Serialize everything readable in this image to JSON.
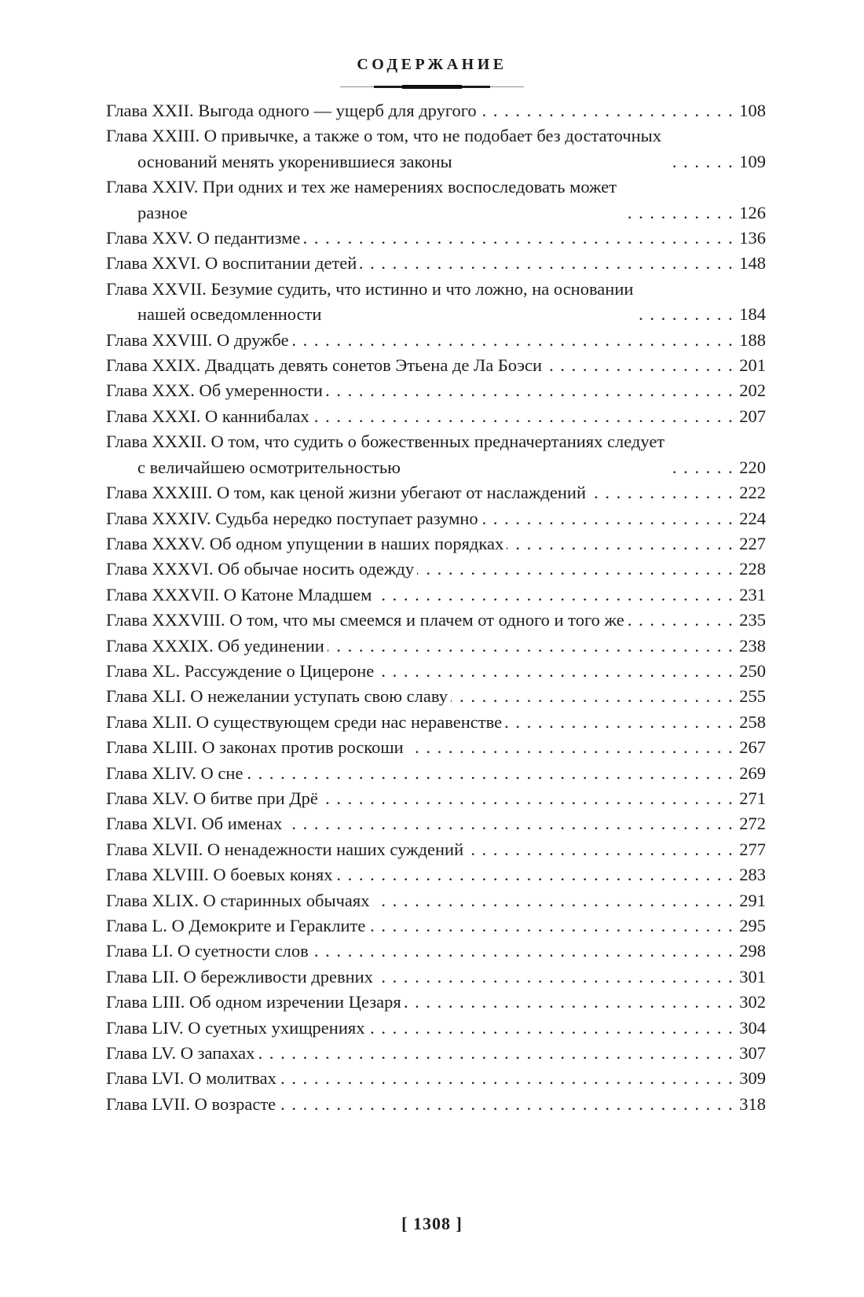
{
  "header": {
    "title": "СОДЕРЖАНИЕ"
  },
  "toc": {
    "entries": [
      {
        "title": "Глава XXII. Выгода одного — ущерб для другого",
        "page": "108"
      },
      {
        "title": "Глава XXIII. О привычке, а также о том, что не подобает без достаточных\nоснований менять укоренившиеся законы",
        "page": "109"
      },
      {
        "title": "Глава XXIV. При одних и тех же намерениях воспоследовать может\nразное",
        "page": "126"
      },
      {
        "title": "Глава XXV. О педантизме",
        "page": "136"
      },
      {
        "title": "Глава XXVI. О воспитании детей",
        "page": "148"
      },
      {
        "title": "Глава XXVII. Безумие судить, что истинно и что ложно, на основании\nнашей осведомленности",
        "page": "184"
      },
      {
        "title": "Глава XXVIII. О дружбе",
        "page": "188"
      },
      {
        "title": "Глава XXIX. Двадцать девять сонетов Этьена де Ла Боэси",
        "page": "201"
      },
      {
        "title": "Глава XXX. Об умеренности",
        "page": "202"
      },
      {
        "title": "Глава XXXI. О каннибалах",
        "page": "207"
      },
      {
        "title": "Глава XXXII. О том, что судить о божественных предначертаниях следует\nс величайшею осмотрительностью",
        "page": "220"
      },
      {
        "title": "Глава XXXIII. О том, как ценой жизни убегают от наслаждений",
        "page": "222"
      },
      {
        "title": "Глава XXXIV. Судьба нередко поступает разумно",
        "page": "224"
      },
      {
        "title": "Глава XXXV. Об одном упущении в наших порядках",
        "page": "227"
      },
      {
        "title": "Глава XXXVI. Об обычае носить одежду",
        "page": "228"
      },
      {
        "title": "Глава XXXVII. О Катоне Младшем",
        "page": "231"
      },
      {
        "title": "Глава XXXVIII. О том, что мы смеемся и плачем от одного и того же",
        "page": "235"
      },
      {
        "title": "Глава XXXIX. Об уединении",
        "page": "238"
      },
      {
        "title": "Глава XL. Рассуждение о Цицероне",
        "page": "250"
      },
      {
        "title": "Глава XLI. О нежелании уступать свою славу",
        "page": "255"
      },
      {
        "title": "Глава XLII. О существующем среди нас неравенстве",
        "page": "258"
      },
      {
        "title": "Глава XLIII. О законах против роскоши",
        "page": "267"
      },
      {
        "title": "Глава XLIV. О сне",
        "page": "269"
      },
      {
        "title": "Глава XLV. О битве при Дрё",
        "page": "271"
      },
      {
        "title": "Глава XLVI. Об именах",
        "page": "272"
      },
      {
        "title": "Глава XLVII. О ненадежности наших суждений",
        "page": "277"
      },
      {
        "title": "Глава XLVIII. О боевых конях",
        "page": "283"
      },
      {
        "title": "Глава XLIX. О старинных обычаях",
        "page": "291"
      },
      {
        "title": "Глава L. О Демокрите и Гераклите",
        "page": "295"
      },
      {
        "title": "Глава LI. О суетности слов",
        "page": "298"
      },
      {
        "title": "Глава LII. О бережливости древних",
        "page": "301"
      },
      {
        "title": "Глава LIII. Об одном изречении Цезаря",
        "page": "302"
      },
      {
        "title": "Глава LIV. О суетных ухищрениях",
        "page": "304"
      },
      {
        "title": "Глава LV. О запахах",
        "page": "307"
      },
      {
        "title": "Глава LVI. О молитвах",
        "page": "309"
      },
      {
        "title": "Глава LVII. О возрасте",
        "page": "318"
      }
    ]
  },
  "footer": {
    "page_number": "1308",
    "display": "[ 1308 ]"
  }
}
